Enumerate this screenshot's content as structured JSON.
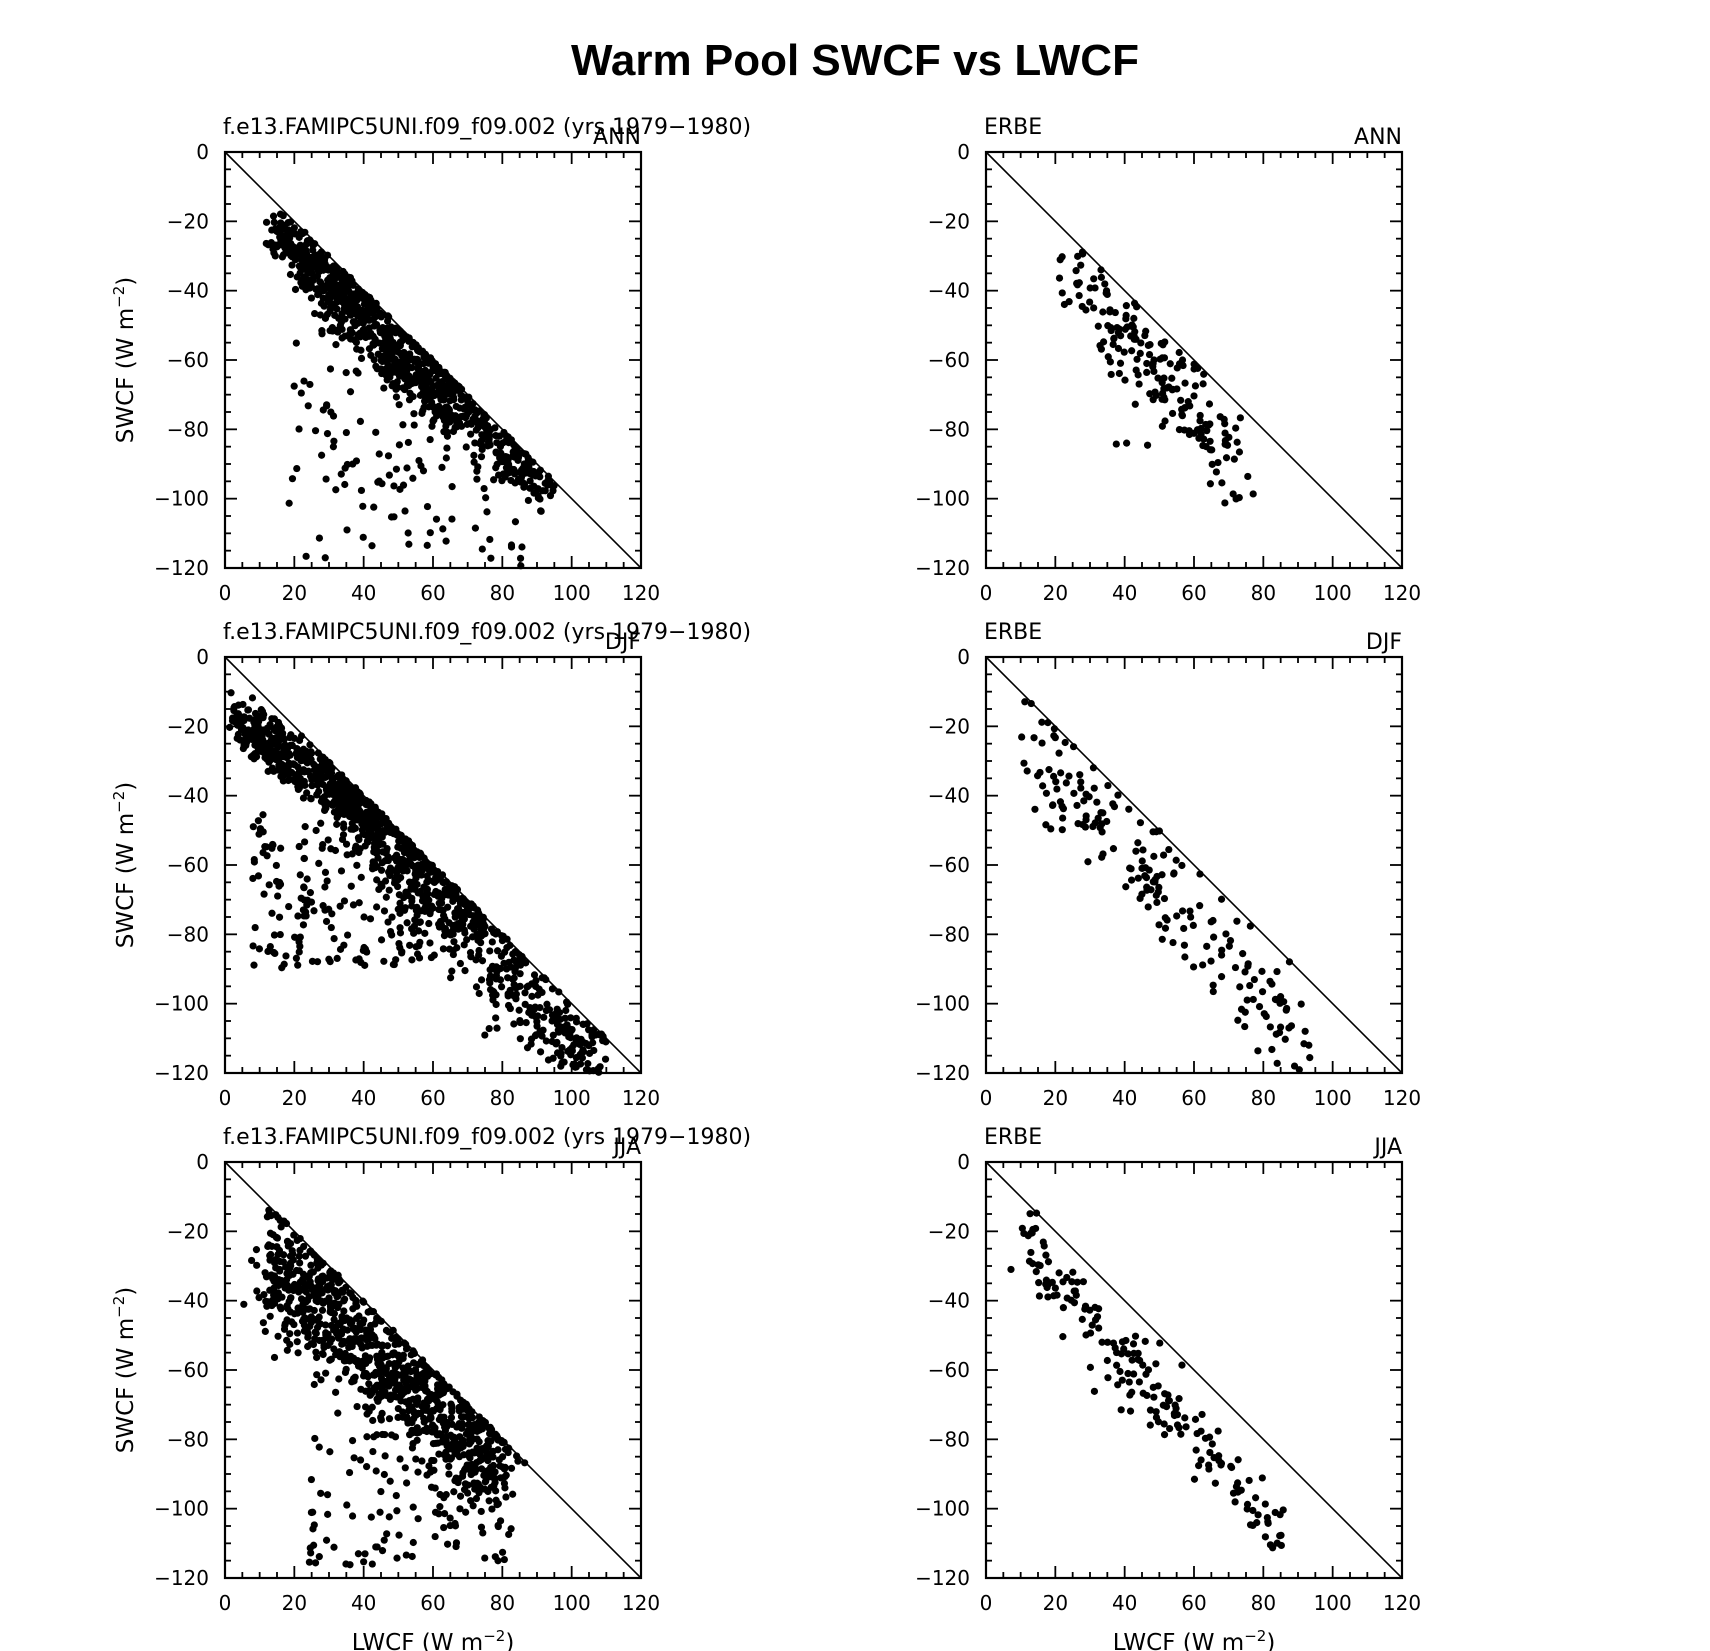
{
  "figure": {
    "title": "Warm Pool SWCF vs LWCF",
    "axis_ticks": [
      "0",
      "20",
      "40",
      "60",
      "80",
      "100",
      "120"
    ],
    "y_ticks": [
      "0",
      "−20",
      "−40",
      "−60",
      "−80",
      "−100",
      "−120"
    ],
    "xlabel_prefix": "LWCF  (W  m",
    "ylabel_prefix": "SWCF  (W  m",
    "unit_exponent": "−2",
    "unit_close": ")"
  },
  "chart_data": [
    {
      "type": "scatter",
      "left_label": "f.e13.FAMIPC5UNI.f09_f09.002 (yrs  1979−1980)",
      "right_label": "ANN",
      "xlabel": "",
      "ylabel": "SWCF  (W  m−2)",
      "xlim": [
        0,
        120
      ],
      "ylim": [
        -120,
        0
      ],
      "reference_line": [
        [
          0,
          0
        ],
        [
          120,
          -120
        ]
      ],
      "cloud": {
        "seed": 11,
        "count": 900,
        "pieces": [
          {
            "x": [
              14,
              42
            ],
            "y": [
              -22,
              -48
            ],
            "w": 4
          },
          {
            "x": [
              28,
              68
            ],
            "y": [
              -40,
              -68
            ],
            "w": 6
          },
          {
            "x": [
              45,
              92
            ],
            "y": [
              -58,
              -97
            ],
            "w": 4
          }
        ],
        "scatter": {
          "x": [
            18,
            90
          ],
          "y": [
            -55,
            -120
          ],
          "n": 150
        }
      }
    },
    {
      "type": "scatter",
      "left_label": "ERBE",
      "right_label": "ANN",
      "xlabel": "",
      "ylabel": "",
      "xlim": [
        0,
        120
      ],
      "ylim": [
        -120,
        0
      ],
      "reference_line": [
        [
          0,
          0
        ],
        [
          120,
          -120
        ]
      ],
      "cloud": {
        "seed": 21,
        "count": 170,
        "pieces": [
          {
            "x": [
              23,
              75
            ],
            "y": [
              -34,
              -92
            ],
            "w": 6
          }
        ],
        "scatter": {
          "x": [
            30,
            70
          ],
          "y": [
            -50,
            -95
          ],
          "n": 20
        }
      }
    },
    {
      "type": "scatter",
      "left_label": "f.e13.FAMIPC5UNI.f09_f09.002 (yrs  1979−1980)",
      "right_label": "DJF",
      "xlabel": "",
      "ylabel": "SWCF  (W  m−2)",
      "xlim": [
        0,
        120
      ],
      "ylim": [
        -120,
        0
      ],
      "reference_line": [
        [
          0,
          0
        ],
        [
          120,
          -120
        ]
      ],
      "cloud": {
        "seed": 31,
        "count": 1000,
        "pieces": [
          {
            "x": [
              3,
              45
            ],
            "y": [
              -18,
              -48
            ],
            "w": 4
          },
          {
            "x": [
              40,
              108
            ],
            "y": [
              -48,
              -120
            ],
            "w": 7
          }
        ],
        "scatter": {
          "x": [
            8,
            75
          ],
          "y": [
            -45,
            -90
          ],
          "n": 260
        }
      }
    },
    {
      "type": "scatter",
      "left_label": "ERBE",
      "right_label": "DJF",
      "xlabel": "",
      "ylabel": "",
      "xlim": [
        0,
        120
      ],
      "ylim": [
        -120,
        0
      ],
      "reference_line": [
        [
          0,
          0
        ],
        [
          120,
          -120
        ]
      ],
      "cloud": {
        "seed": 41,
        "count": 180,
        "pieces": [
          {
            "x": [
              10,
              92
            ],
            "y": [
              -22,
              -114
            ],
            "w": 8
          }
        ],
        "scatter": {
          "x": [
            14,
            60
          ],
          "y": [
            -40,
            -62
          ],
          "n": 15
        }
      }
    },
    {
      "type": "scatter",
      "left_label": "f.e13.FAMIPC5UNI.f09_f09.002 (yrs  1979−1980)",
      "right_label": "JJA",
      "xlabel": "LWCF  (W  m−2)",
      "ylabel": "SWCF  (W  m−2)",
      "xlim": [
        0,
        120
      ],
      "ylim": [
        -120,
        0
      ],
      "reference_line": [
        [
          0,
          0
        ],
        [
          120,
          -120
        ]
      ],
      "cloud": {
        "seed": 51,
        "count": 950,
        "pieces": [
          {
            "x": [
              12,
              80
            ],
            "y": [
              -28,
              -90
            ],
            "w": 9
          }
        ],
        "scatter": {
          "x": [
            24,
            82
          ],
          "y": [
            -78,
            -117
          ],
          "n": 110
        }
      }
    },
    {
      "type": "scatter",
      "left_label": "ERBE",
      "right_label": "JJA",
      "xlabel": "LWCF  (W  m−2)",
      "ylabel": "",
      "xlim": [
        0,
        120
      ],
      "ylim": [
        -120,
        0
      ],
      "reference_line": [
        [
          0,
          0
        ],
        [
          120,
          -120
        ]
      ],
      "cloud": {
        "seed": 61,
        "count": 170,
        "pieces": [
          {
            "x": [
              10,
              85
            ],
            "y": [
              -22,
              -108
            ],
            "w": 5
          }
        ],
        "scatter": {
          "x": [
            30,
            60
          ],
          "y": [
            -50,
            -75
          ],
          "n": 12
        }
      }
    }
  ]
}
